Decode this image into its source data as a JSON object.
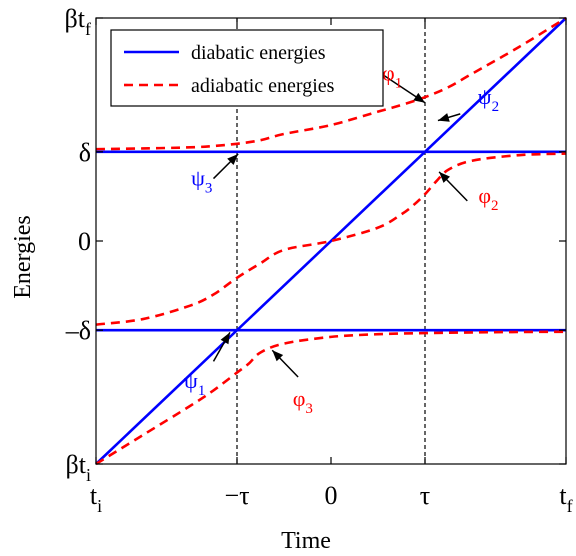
{
  "chart_data": {
    "type": "line",
    "xlabel": "Time",
    "ylabel": "Energies",
    "xlim": [
      -1,
      1
    ],
    "ylim": [
      -1,
      1
    ],
    "x_ticks": [
      {
        "value": -1,
        "label": "t",
        "sub": "i"
      },
      {
        "value": -0.4,
        "label": "−τ",
        "sub": ""
      },
      {
        "value": 0,
        "label": "0",
        "sub": ""
      },
      {
        "value": 0.4,
        "label": "τ",
        "sub": ""
      },
      {
        "value": 1,
        "label": "t",
        "sub": "f"
      }
    ],
    "y_ticks": [
      {
        "value": -1,
        "label": "βt",
        "sub": "i"
      },
      {
        "value": -0.4,
        "label": "–δ",
        "sub": ""
      },
      {
        "value": 0,
        "label": "0",
        "sub": ""
      },
      {
        "value": 0.4,
        "label": "δ",
        "sub": ""
      },
      {
        "value": 1,
        "label": "βt",
        "sub": "f"
      }
    ],
    "vlines": [
      -0.4,
      0.4
    ],
    "legend": {
      "position": "top-left",
      "entries": [
        {
          "label": "diabatic energies",
          "color": "#0000ff",
          "dash": "solid"
        },
        {
          "label": "adiabatic energies",
          "color": "#ff0000",
          "dash": "dashed"
        }
      ]
    },
    "diabatic": [
      {
        "x": [
          -1,
          1
        ],
        "y": [
          0.4,
          0.4
        ]
      },
      {
        "x": [
          -1,
          1
        ],
        "y": [
          -1,
          1
        ]
      },
      {
        "x": [
          -1,
          1
        ],
        "y": [
          -0.4,
          -0.4
        ]
      }
    ],
    "adiabatic": [
      {
        "x": [
          -1,
          -0.8,
          -0.6,
          -0.5,
          -0.4,
          -0.3,
          -0.2,
          0,
          0.2,
          0.3,
          0.4,
          0.5,
          0.6,
          0.8,
          1
        ],
        "y": [
          0.412,
          0.415,
          0.42,
          0.426,
          0.436,
          0.452,
          0.48,
          0.52,
          0.58,
          0.61,
          0.645,
          0.69,
          0.75,
          0.87,
          1.0
        ]
      },
      {
        "x": [
          -1,
          -0.8,
          -0.6,
          -0.5,
          -0.4,
          -0.3,
          -0.2,
          0,
          0.2,
          0.3,
          0.35,
          0.4,
          0.45,
          0.5,
          0.6,
          0.8,
          1
        ],
        "y": [
          -0.375,
          -0.35,
          -0.29,
          -0.24,
          -0.165,
          -0.1,
          -0.04,
          0.0,
          0.06,
          0.12,
          0.16,
          0.21,
          0.27,
          0.32,
          0.36,
          0.385,
          0.392
        ]
      },
      {
        "x": [
          -1,
          -0.8,
          -0.6,
          -0.5,
          -0.4,
          -0.35,
          -0.3,
          -0.2,
          0,
          0.2,
          0.4,
          0.6,
          0.8,
          1
        ],
        "y": [
          -1.0,
          -0.87,
          -0.74,
          -0.67,
          -0.59,
          -0.55,
          -0.5,
          -0.46,
          -0.43,
          -0.418,
          -0.413,
          -0.41,
          -0.408,
          -0.407
        ]
      }
    ],
    "annotations": [
      {
        "label": "φ",
        "sub": "1",
        "color": "#ff0000",
        "x": 0.15,
        "y": 0.795,
        "ax": 0.4,
        "ay": 0.62,
        "tx": 0.26,
        "ty": 0.72
      },
      {
        "label": "ψ",
        "sub": "2",
        "color": "#0000ff",
        "x": 0.55,
        "y": 0.57,
        "ax": 0.455,
        "ay": 0.54,
        "tx": 0.67,
        "ty": 0.615
      },
      {
        "label": "φ",
        "sub": "2",
        "color": "#ff0000",
        "x": 0.58,
        "y": 0.18,
        "ax": 0.46,
        "ay": 0.31,
        "tx": 0.67,
        "ty": 0.17
      },
      {
        "label": "ψ",
        "sub": "3",
        "color": "#0000ff",
        "x": -0.5,
        "y": 0.28,
        "ax": -0.395,
        "ay": 0.39,
        "tx": -0.55,
        "ty": 0.25
      },
      {
        "label": "ψ",
        "sub": "1",
        "color": "#0000ff",
        "x": -0.5,
        "y": -0.54,
        "ax": -0.43,
        "ay": -0.41,
        "tx": -0.58,
        "ty": -0.66
      },
      {
        "label": "φ",
        "sub": "3",
        "color": "#ff0000",
        "x": -0.14,
        "y": -0.61,
        "ax": -0.25,
        "ay": -0.49,
        "tx": -0.12,
        "ty": -0.74
      }
    ],
    "grid": false
  }
}
